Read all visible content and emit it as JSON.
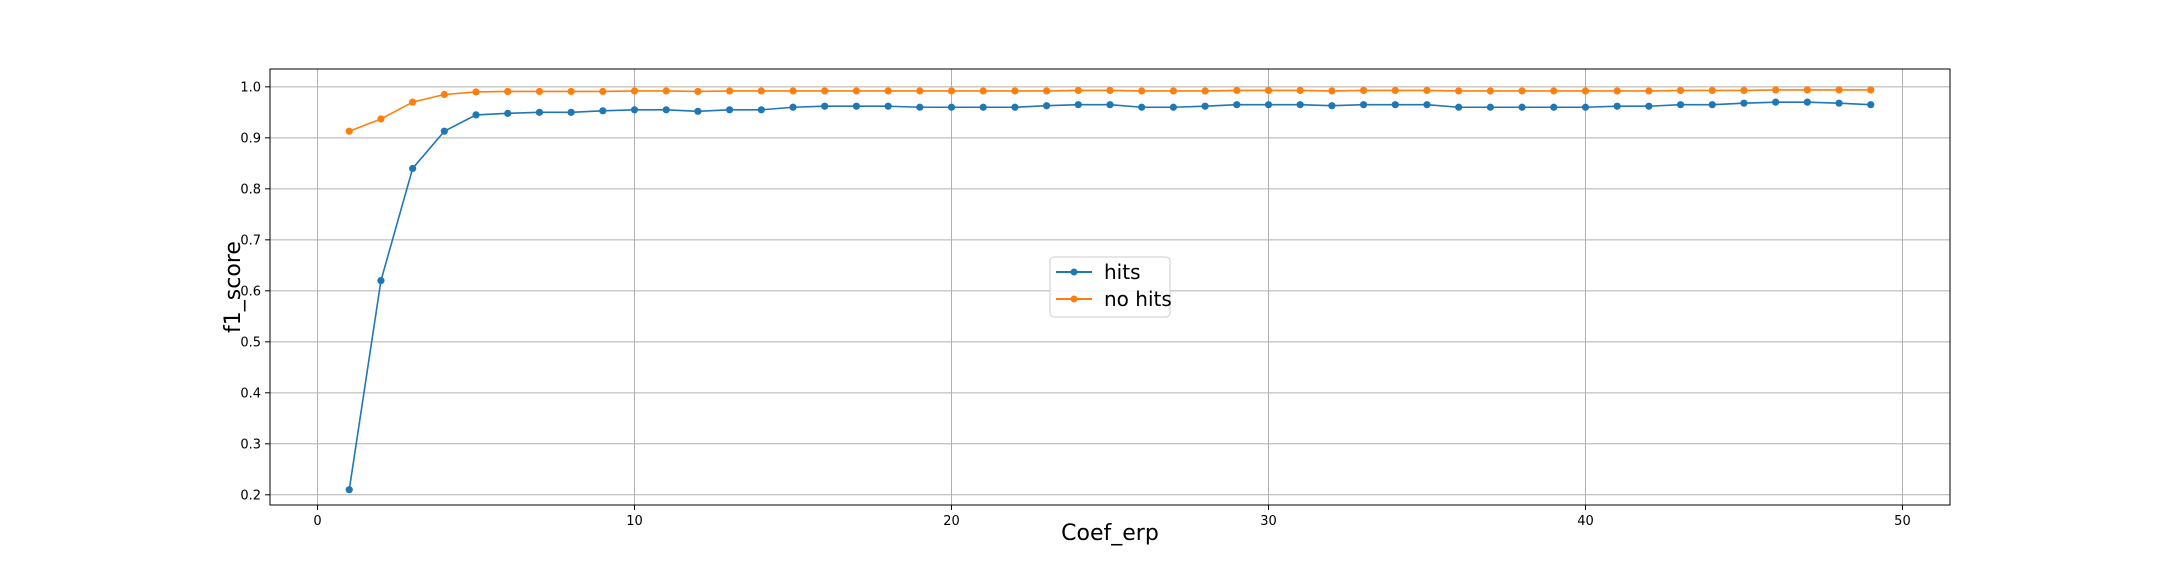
{
  "chart_data": {
    "type": "line",
    "title": "",
    "xlabel": "Coef_erp",
    "ylabel": "f1_score",
    "xlim": [
      -1.5,
      51.5
    ],
    "ylim": [
      0.18,
      1.035
    ],
    "xticks": [
      0,
      10,
      20,
      30,
      40,
      50
    ],
    "yticks": [
      0.2,
      0.3,
      0.4,
      0.5,
      0.6,
      0.7,
      0.8,
      0.9,
      1.0
    ],
    "xtick_labels": [
      "0",
      "10",
      "20",
      "30",
      "40",
      "50"
    ],
    "ytick_labels": [
      "0.2",
      "0.3",
      "0.4",
      "0.5",
      "0.6",
      "0.7",
      "0.8",
      "0.9",
      "1.0"
    ],
    "grid": true,
    "legend_position": "center",
    "x": [
      1,
      2,
      3,
      4,
      5,
      6,
      7,
      8,
      9,
      10,
      11,
      12,
      13,
      14,
      15,
      16,
      17,
      18,
      19,
      20,
      21,
      22,
      23,
      24,
      25,
      26,
      27,
      28,
      29,
      30,
      31,
      32,
      33,
      34,
      35,
      36,
      37,
      38,
      39,
      40,
      41,
      42,
      43,
      44,
      45,
      46,
      47,
      48,
      49
    ],
    "series": [
      {
        "name": "hits",
        "color": "#1f77b4",
        "values": [
          0.21,
          0.62,
          0.84,
          0.913,
          0.945,
          0.948,
          0.95,
          0.95,
          0.953,
          0.955,
          0.955,
          0.952,
          0.955,
          0.955,
          0.96,
          0.962,
          0.962,
          0.962,
          0.96,
          0.96,
          0.96,
          0.96,
          0.963,
          0.965,
          0.965,
          0.96,
          0.96,
          0.962,
          0.965,
          0.965,
          0.965,
          0.963,
          0.965,
          0.965,
          0.965,
          0.96,
          0.96,
          0.96,
          0.96,
          0.96,
          0.962,
          0.962,
          0.965,
          0.965,
          0.968,
          0.97,
          0.97,
          0.968,
          0.965
        ]
      },
      {
        "name": "no hits",
        "color": "#ff7f0e",
        "values": [
          0.913,
          0.937,
          0.97,
          0.985,
          0.99,
          0.991,
          0.991,
          0.991,
          0.991,
          0.992,
          0.992,
          0.991,
          0.992,
          0.992,
          0.992,
          0.992,
          0.992,
          0.992,
          0.992,
          0.992,
          0.992,
          0.992,
          0.992,
          0.993,
          0.993,
          0.992,
          0.992,
          0.992,
          0.993,
          0.993,
          0.993,
          0.992,
          0.993,
          0.993,
          0.993,
          0.992,
          0.992,
          0.992,
          0.992,
          0.992,
          0.992,
          0.992,
          0.993,
          0.993,
          0.993,
          0.994,
          0.994,
          0.994,
          0.994
        ]
      }
    ]
  }
}
